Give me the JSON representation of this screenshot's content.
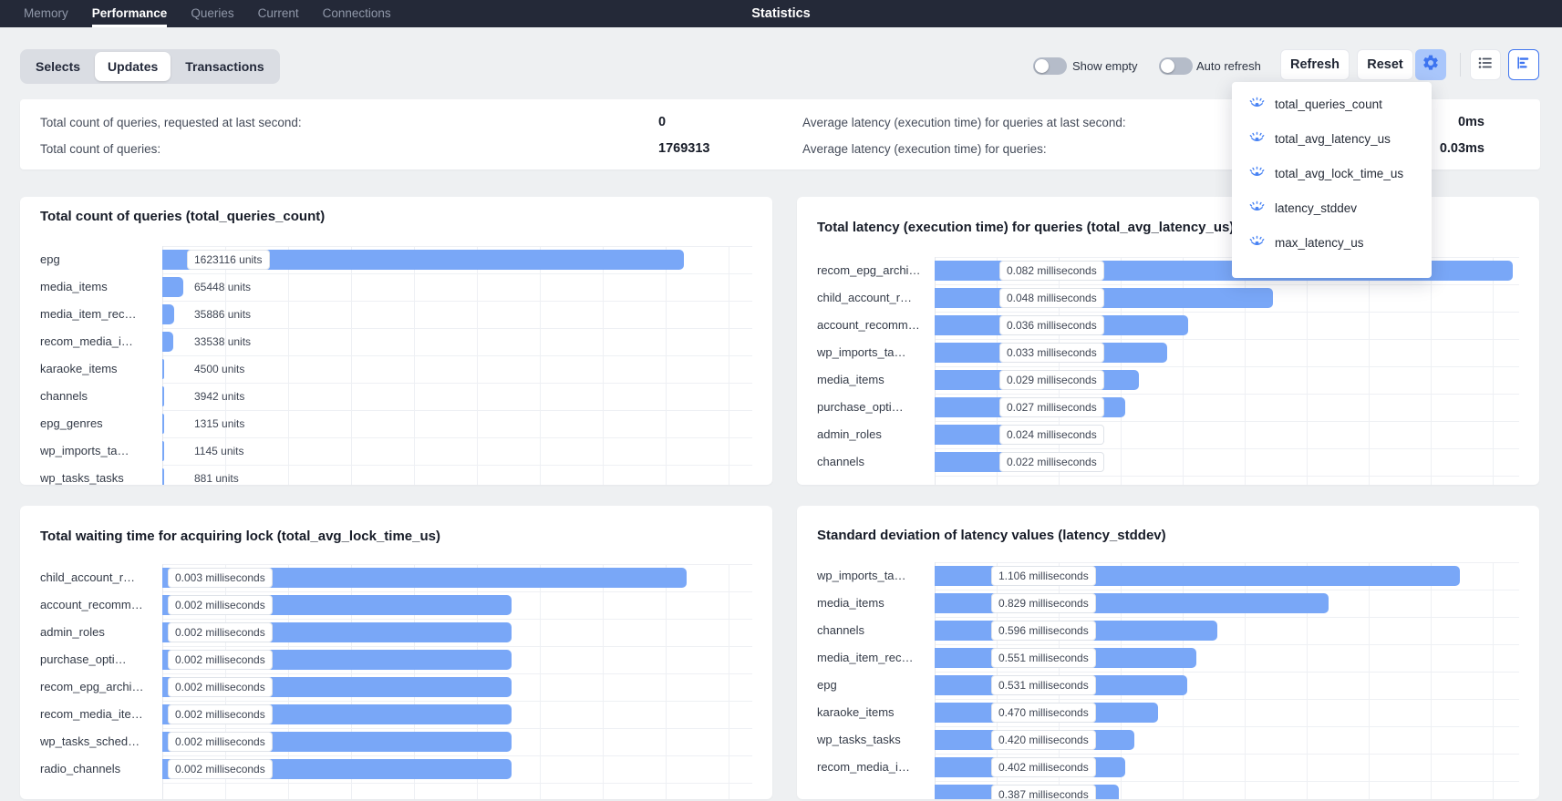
{
  "nav": {
    "items": [
      {
        "label": "Memory",
        "active": false
      },
      {
        "label": "Performance",
        "active": true
      },
      {
        "label": "Queries",
        "active": false
      },
      {
        "label": "Current",
        "active": false
      },
      {
        "label": "Connections",
        "active": false
      }
    ],
    "title": "Statistics"
  },
  "toolbar": {
    "tabs": [
      {
        "label": "Selects",
        "active": false
      },
      {
        "label": "Updates",
        "active": true
      },
      {
        "label": "Transactions",
        "active": false
      }
    ],
    "toggles": [
      {
        "label": "Show empty",
        "on": false
      },
      {
        "label": "Auto refresh",
        "on": false
      }
    ],
    "refresh_label": "Refresh",
    "reset_label": "Reset",
    "icons": [
      "gear-icon",
      "list-view-icon",
      "chart-view-icon"
    ]
  },
  "settings_dropdown": {
    "icon": "eye-icon",
    "items": [
      "total_queries_count",
      "total_avg_latency_us",
      "total_avg_lock_time_us",
      "latency_stddev",
      "max_latency_us"
    ]
  },
  "stats": {
    "left": [
      {
        "label": "Total count of queries, requested at last second:",
        "value": "0"
      },
      {
        "label": "Total count of queries:",
        "value": "1769313"
      }
    ],
    "right": [
      {
        "label": "Average latency (execution time) for queries at last second:",
        "value": "0ms"
      },
      {
        "label": "Average latency (execution time) for queries:",
        "value": "0.03ms"
      }
    ]
  },
  "colors": {
    "accent_blue": "#4176f0",
    "bar_blue": "#79a7f7",
    "nav_bg": "#242938"
  },
  "chart_data": [
    {
      "type": "bar",
      "orientation": "horizontal",
      "title": "Total count of queries (total_queries_count)",
      "unit": "units",
      "categories": [
        "epg",
        "media_items",
        "media_item_rec…",
        "recom_media_i…",
        "karaoke_items",
        "channels",
        "epg_genres",
        "wp_imports_ta…",
        "wp_tasks_tasks"
      ],
      "values": [
        1623116,
        65448,
        35886,
        33538,
        4500,
        3942,
        1315,
        1145,
        881
      ],
      "value_labels": [
        "1623116 units",
        "65448 units",
        "35886 units",
        "33538 units",
        "4500 units",
        "3942 units",
        "1315 units",
        "1145 units",
        "881 units"
      ],
      "xlim": [
        0,
        1623116
      ],
      "grid": true
    },
    {
      "type": "bar",
      "orientation": "horizontal",
      "title": "Total latency (execution time) for queries (total_avg_latency_us)",
      "unit": "milliseconds",
      "categories": [
        "recom_epg_archi…",
        "child_account_r…",
        "account_recomm…",
        "wp_imports_ta…",
        "media_items",
        "purchase_opti…",
        "admin_roles",
        "channels"
      ],
      "values": [
        0.082,
        0.048,
        0.036,
        0.033,
        0.029,
        0.027,
        0.024,
        0.022
      ],
      "value_labels": [
        "0.082 milliseconds",
        "0.048 milliseconds",
        "0.036 milliseconds",
        "0.033 milliseconds",
        "0.029 milliseconds",
        "0.027 milliseconds",
        "0.024 milliseconds",
        "0.022 milliseconds"
      ],
      "xlim": [
        0,
        0.082
      ],
      "grid": true
    },
    {
      "type": "bar",
      "orientation": "horizontal",
      "title": "Total waiting time for acquiring lock (total_avg_lock_time_us)",
      "unit": "milliseconds",
      "categories": [
        "child_account_r…",
        "account_recomm…",
        "admin_roles",
        "purchase_opti…",
        "recom_epg_archi…",
        "recom_media_ite…",
        "wp_tasks_sched…",
        "radio_channels"
      ],
      "values": [
        0.003,
        0.002,
        0.002,
        0.002,
        0.002,
        0.002,
        0.002,
        0.002
      ],
      "value_labels": [
        "0.003 milliseconds",
        "0.002 milliseconds",
        "0.002 milliseconds",
        "0.002 milliseconds",
        "0.002 milliseconds",
        "0.002 milliseconds",
        "0.002 milliseconds",
        "0.002 milliseconds"
      ],
      "xlim": [
        0,
        0.003
      ],
      "grid": true
    },
    {
      "type": "bar",
      "orientation": "horizontal",
      "title": "Standard deviation of latency values (latency_stddev)",
      "unit": "milliseconds",
      "categories": [
        "wp_imports_ta…",
        "media_items",
        "channels",
        "media_item_rec…",
        "epg",
        "karaoke_items",
        "wp_tasks_tasks",
        "recom_media_i…",
        ""
      ],
      "values": [
        1.106,
        0.829,
        0.596,
        0.551,
        0.531,
        0.47,
        0.42,
        0.402,
        0.387
      ],
      "value_labels": [
        "1.106 milliseconds",
        "0.829 milliseconds",
        "0.596 milliseconds",
        "0.551 milliseconds",
        "0.531 milliseconds",
        "0.470 milliseconds",
        "0.420 milliseconds",
        "0.402 milliseconds",
        "0.387 milliseconds"
      ],
      "xlim": [
        0,
        1.106
      ],
      "grid": true
    }
  ]
}
